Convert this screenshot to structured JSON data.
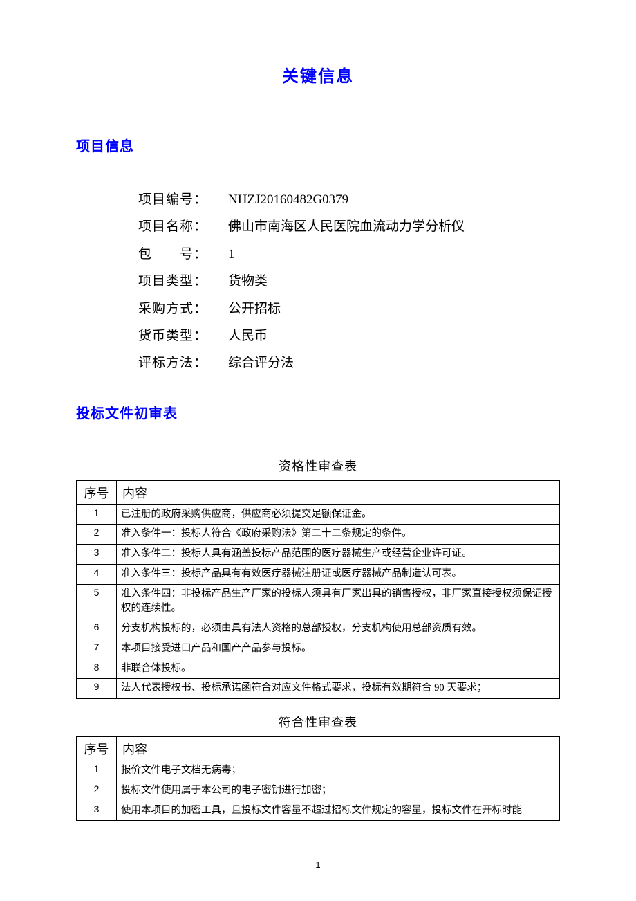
{
  "main_title": "关键信息",
  "section_project": {
    "header": "项目信息",
    "rows": [
      {
        "label": "项目编号：",
        "value": "NHZJ20160482G0379"
      },
      {
        "label": "项目名称：",
        "value": "佛山市南海区人民医院血流动力学分析仪"
      },
      {
        "label": "包　　号：",
        "value": "1"
      },
      {
        "label": "项目类型：",
        "value": "货物类"
      },
      {
        "label": "采购方式：",
        "value": "公开招标"
      },
      {
        "label": "货币类型：",
        "value": "人民币"
      },
      {
        "label": "评标方法：",
        "value": "综合评分法"
      }
    ]
  },
  "section_audit": {
    "header": "投标文件初审表"
  },
  "table1": {
    "title": "资格性审查表",
    "col_seq": "序号",
    "col_content": "内容",
    "rows": [
      {
        "seq": "1",
        "content": "已注册的政府采购供应商，供应商必须提交足额保证金。"
      },
      {
        "seq": "2",
        "content": "准入条件一：投标人符合《政府采购法》第二十二条规定的条件。"
      },
      {
        "seq": "3",
        "content": "准入条件二：投标人具有涵盖投标产品范围的医疗器械生产或经营企业许可证。"
      },
      {
        "seq": "4",
        "content": "准入条件三：投标产品具有有效医疗器械注册证或医疗器械产品制造认可表。"
      },
      {
        "seq": "5",
        "content": "准入条件四：非投标产品生产厂家的投标人须具有厂家出具的销售授权，非厂家直接授权须保证授权的连续性。"
      },
      {
        "seq": "6",
        "content": "分支机构投标的，必须由具有法人资格的总部授权，分支机构使用总部资质有效。"
      },
      {
        "seq": "7",
        "content": "本项目接受进口产品和国产产品参与投标。"
      },
      {
        "seq": "8",
        "content": "非联合体投标。"
      },
      {
        "seq": "9",
        "content": "法人代表授权书、投标承诺函符合对应文件格式要求，投标有效期符合 90 天要求；"
      }
    ]
  },
  "table2": {
    "title": "符合性审查表",
    "col_seq": "序号",
    "col_content": "内容",
    "rows": [
      {
        "seq": "1",
        "content": "报价文件电子文档无病毒；"
      },
      {
        "seq": "2",
        "content": "投标文件使用属于本公司的电子密钥进行加密；"
      },
      {
        "seq": "3",
        "content": "使用本项目的加密工具，且投标文件容量不超过招标文件规定的容量，投标文件在开标时能"
      }
    ]
  },
  "page_number": "1",
  "styles": {
    "accent_color": "#0000ff",
    "text_color": "#000000",
    "background_color": "#ffffff",
    "title_fontsize": 24,
    "section_header_fontsize": 20,
    "info_fontsize": 19,
    "table_title_fontsize": 18,
    "table_header_fontsize": 18,
    "table_cell_fontsize": 14.5,
    "border_color": "#000000"
  }
}
